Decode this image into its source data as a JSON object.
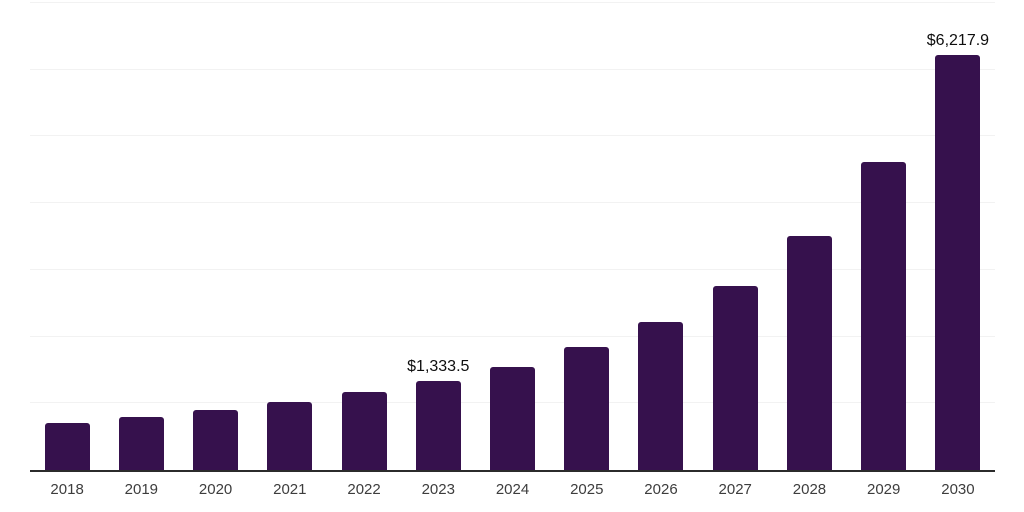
{
  "chart_data": {
    "type": "bar",
    "title": "",
    "xlabel": "",
    "ylabel": "",
    "categories": [
      "2018",
      "2019",
      "2020",
      "2021",
      "2022",
      "2023",
      "2024",
      "2025",
      "2026",
      "2027",
      "2028",
      "2029",
      "2030"
    ],
    "values": [
      710,
      790,
      900,
      1015,
      1175,
      1333.5,
      1550,
      1840,
      2225,
      2760,
      3510,
      4610,
      6217.9
    ],
    "annotations": [
      {
        "category": "2023",
        "text": "$1,333.5"
      },
      {
        "category": "2030",
        "text": "$6,217.9"
      }
    ],
    "ylim": [
      0,
      7000
    ],
    "y_gridline_step": 1000,
    "grid": "horizontal",
    "legend": "none",
    "colors": {
      "bar": "#36114d",
      "axis_line": "#2b2b2b",
      "gridline": "#f2f2f2",
      "tick_label": "#3d3d3d",
      "data_label": "#0e0e0e",
      "background": "#ffffff"
    }
  }
}
